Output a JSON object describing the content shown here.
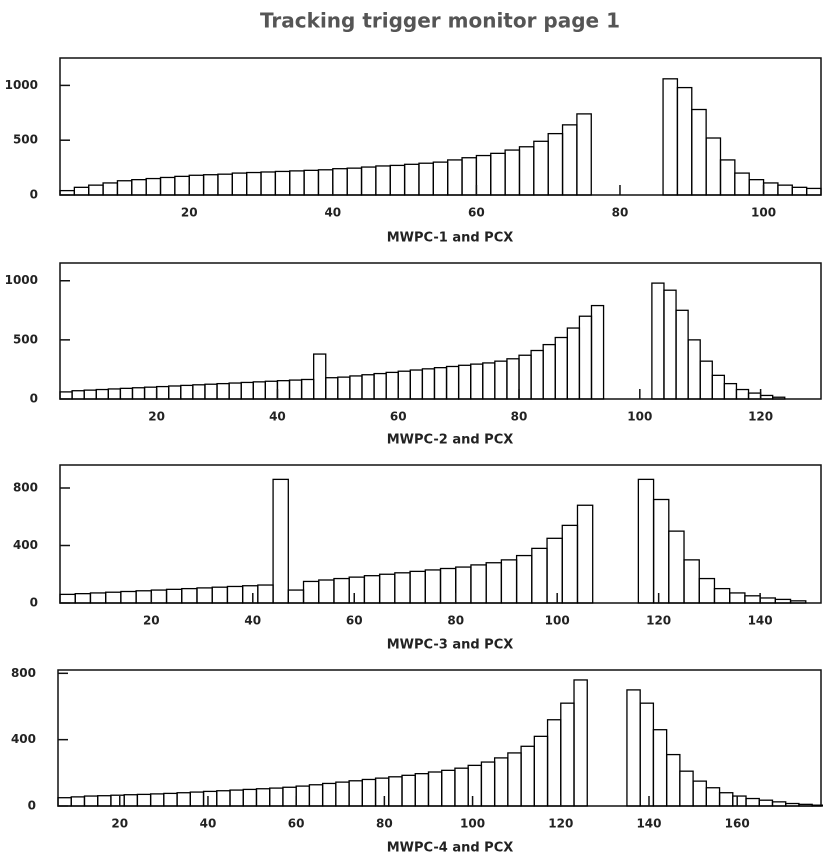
{
  "chart_data": [
    {
      "type": "histogram",
      "title": "Tracking trigger monitor page 1",
      "xlabel": "MWPC-1 and PCX",
      "color": "#000000",
      "bins": [
        2,
        4,
        6,
        8,
        10,
        12,
        14,
        16,
        18,
        20,
        22,
        24,
        26,
        28,
        30,
        32,
        34,
        36,
        38,
        40,
        42,
        44,
        46,
        48,
        50,
        52,
        54,
        56,
        58,
        60,
        62,
        64,
        66,
        68,
        70,
        72,
        74,
        76,
        78,
        80,
        82,
        84,
        86,
        88,
        90,
        92,
        94,
        96,
        98,
        100,
        102,
        104,
        106,
        108
      ],
      "counts": [
        40,
        70,
        90,
        110,
        130,
        140,
        150,
        160,
        170,
        180,
        185,
        190,
        200,
        205,
        210,
        215,
        220,
        225,
        230,
        240,
        245,
        255,
        265,
        270,
        280,
        290,
        300,
        320,
        340,
        360,
        380,
        410,
        440,
        490,
        560,
        640,
        740,
        0,
        0,
        0,
        0,
        0,
        1060,
        980,
        780,
        520,
        320,
        200,
        140,
        110,
        90,
        70,
        60
      ],
      "xlim": [
        2,
        108
      ],
      "xticks": [
        20,
        40,
        60,
        80,
        100
      ],
      "ylim": [
        0,
        1250
      ],
      "yticks": [
        0,
        500,
        1000
      ]
    },
    {
      "type": "histogram",
      "xlabel": "MWPC-2 and PCX",
      "color": "#000000",
      "bins": [
        4,
        6,
        8,
        10,
        12,
        14,
        16,
        18,
        20,
        22,
        24,
        26,
        28,
        30,
        32,
        34,
        36,
        38,
        40,
        42,
        44,
        46,
        48,
        50,
        52,
        54,
        56,
        58,
        60,
        62,
        64,
        66,
        68,
        70,
        72,
        74,
        76,
        78,
        80,
        82,
        84,
        86,
        88,
        90,
        92,
        94,
        96,
        98,
        100,
        102,
        104,
        106,
        108,
        110,
        112,
        114,
        116,
        118,
        120,
        122,
        124,
        126,
        128,
        130
      ],
      "counts": [
        60,
        70,
        75,
        80,
        85,
        90,
        95,
        100,
        105,
        110,
        115,
        120,
        125,
        130,
        135,
        140,
        145,
        150,
        155,
        160,
        165,
        380,
        180,
        185,
        195,
        205,
        215,
        225,
        235,
        245,
        255,
        265,
        275,
        285,
        295,
        305,
        320,
        340,
        370,
        410,
        460,
        520,
        600,
        700,
        790,
        0,
        0,
        0,
        0,
        980,
        920,
        750,
        500,
        320,
        200,
        130,
        80,
        50,
        30,
        15,
        0,
        0,
        0
      ],
      "xlim": [
        4,
        130
      ],
      "xticks": [
        20,
        40,
        60,
        80,
        100,
        120
      ],
      "ylim": [
        0,
        1150
      ],
      "yticks": [
        0,
        500,
        1000
      ]
    },
    {
      "type": "histogram",
      "xlabel": "MWPC-3 and PCX",
      "color": "#000000",
      "bins": [
        2,
        5,
        8,
        11,
        14,
        17,
        20,
        23,
        26,
        29,
        32,
        35,
        38,
        41,
        44,
        47,
        50,
        53,
        56,
        59,
        62,
        65,
        68,
        71,
        74,
        77,
        80,
        83,
        86,
        89,
        92,
        95,
        98,
        101,
        104,
        107,
        110,
        113,
        116,
        119,
        122,
        125,
        128,
        131,
        134,
        137,
        140,
        143,
        146,
        149,
        152
      ],
      "counts": [
        60,
        65,
        70,
        75,
        80,
        85,
        90,
        95,
        100,
        105,
        110,
        115,
        120,
        125,
        860,
        90,
        150,
        160,
        170,
        180,
        190,
        200,
        210,
        220,
        230,
        240,
        250,
        265,
        280,
        300,
        330,
        380,
        450,
        540,
        680,
        0,
        0,
        0,
        860,
        720,
        500,
        300,
        170,
        100,
        70,
        50,
        35,
        25,
        15,
        0
      ],
      "xlim": [
        2,
        152
      ],
      "xticks": [
        20,
        40,
        60,
        80,
        100,
        120,
        140
      ],
      "ylim": [
        0,
        960
      ],
      "yticks": [
        0,
        400,
        800
      ]
    },
    {
      "type": "histogram",
      "xlabel": "MWPC-4 and PCX",
      "color": "#000000",
      "bins": [
        6,
        9,
        12,
        15,
        18,
        21,
        24,
        27,
        30,
        33,
        36,
        39,
        42,
        45,
        48,
        51,
        54,
        57,
        60,
        63,
        66,
        69,
        72,
        75,
        78,
        81,
        84,
        87,
        90,
        93,
        96,
        99,
        102,
        105,
        108,
        111,
        114,
        117,
        120,
        123,
        126,
        129,
        132,
        135,
        138,
        141,
        144,
        147,
        150,
        153,
        156,
        159,
        162,
        165,
        168,
        171,
        174,
        177,
        180
      ],
      "counts": [
        50,
        55,
        60,
        62,
        65,
        68,
        70,
        73,
        76,
        80,
        84,
        88,
        92,
        96,
        100,
        104,
        108,
        113,
        120,
        128,
        136,
        144,
        152,
        160,
        168,
        176,
        185,
        195,
        205,
        215,
        228,
        245,
        265,
        290,
        320,
        360,
        420,
        520,
        620,
        760,
        0,
        0,
        0,
        700,
        620,
        460,
        310,
        210,
        150,
        110,
        80,
        60,
        45,
        35,
        25,
        15,
        10,
        5
      ],
      "xlim": [
        6,
        179
      ],
      "xticks": [
        20,
        40,
        60,
        80,
        100,
        120,
        140,
        160
      ],
      "ylim": [
        0,
        820
      ],
      "yticks": [
        0,
        400,
        800
      ]
    }
  ]
}
